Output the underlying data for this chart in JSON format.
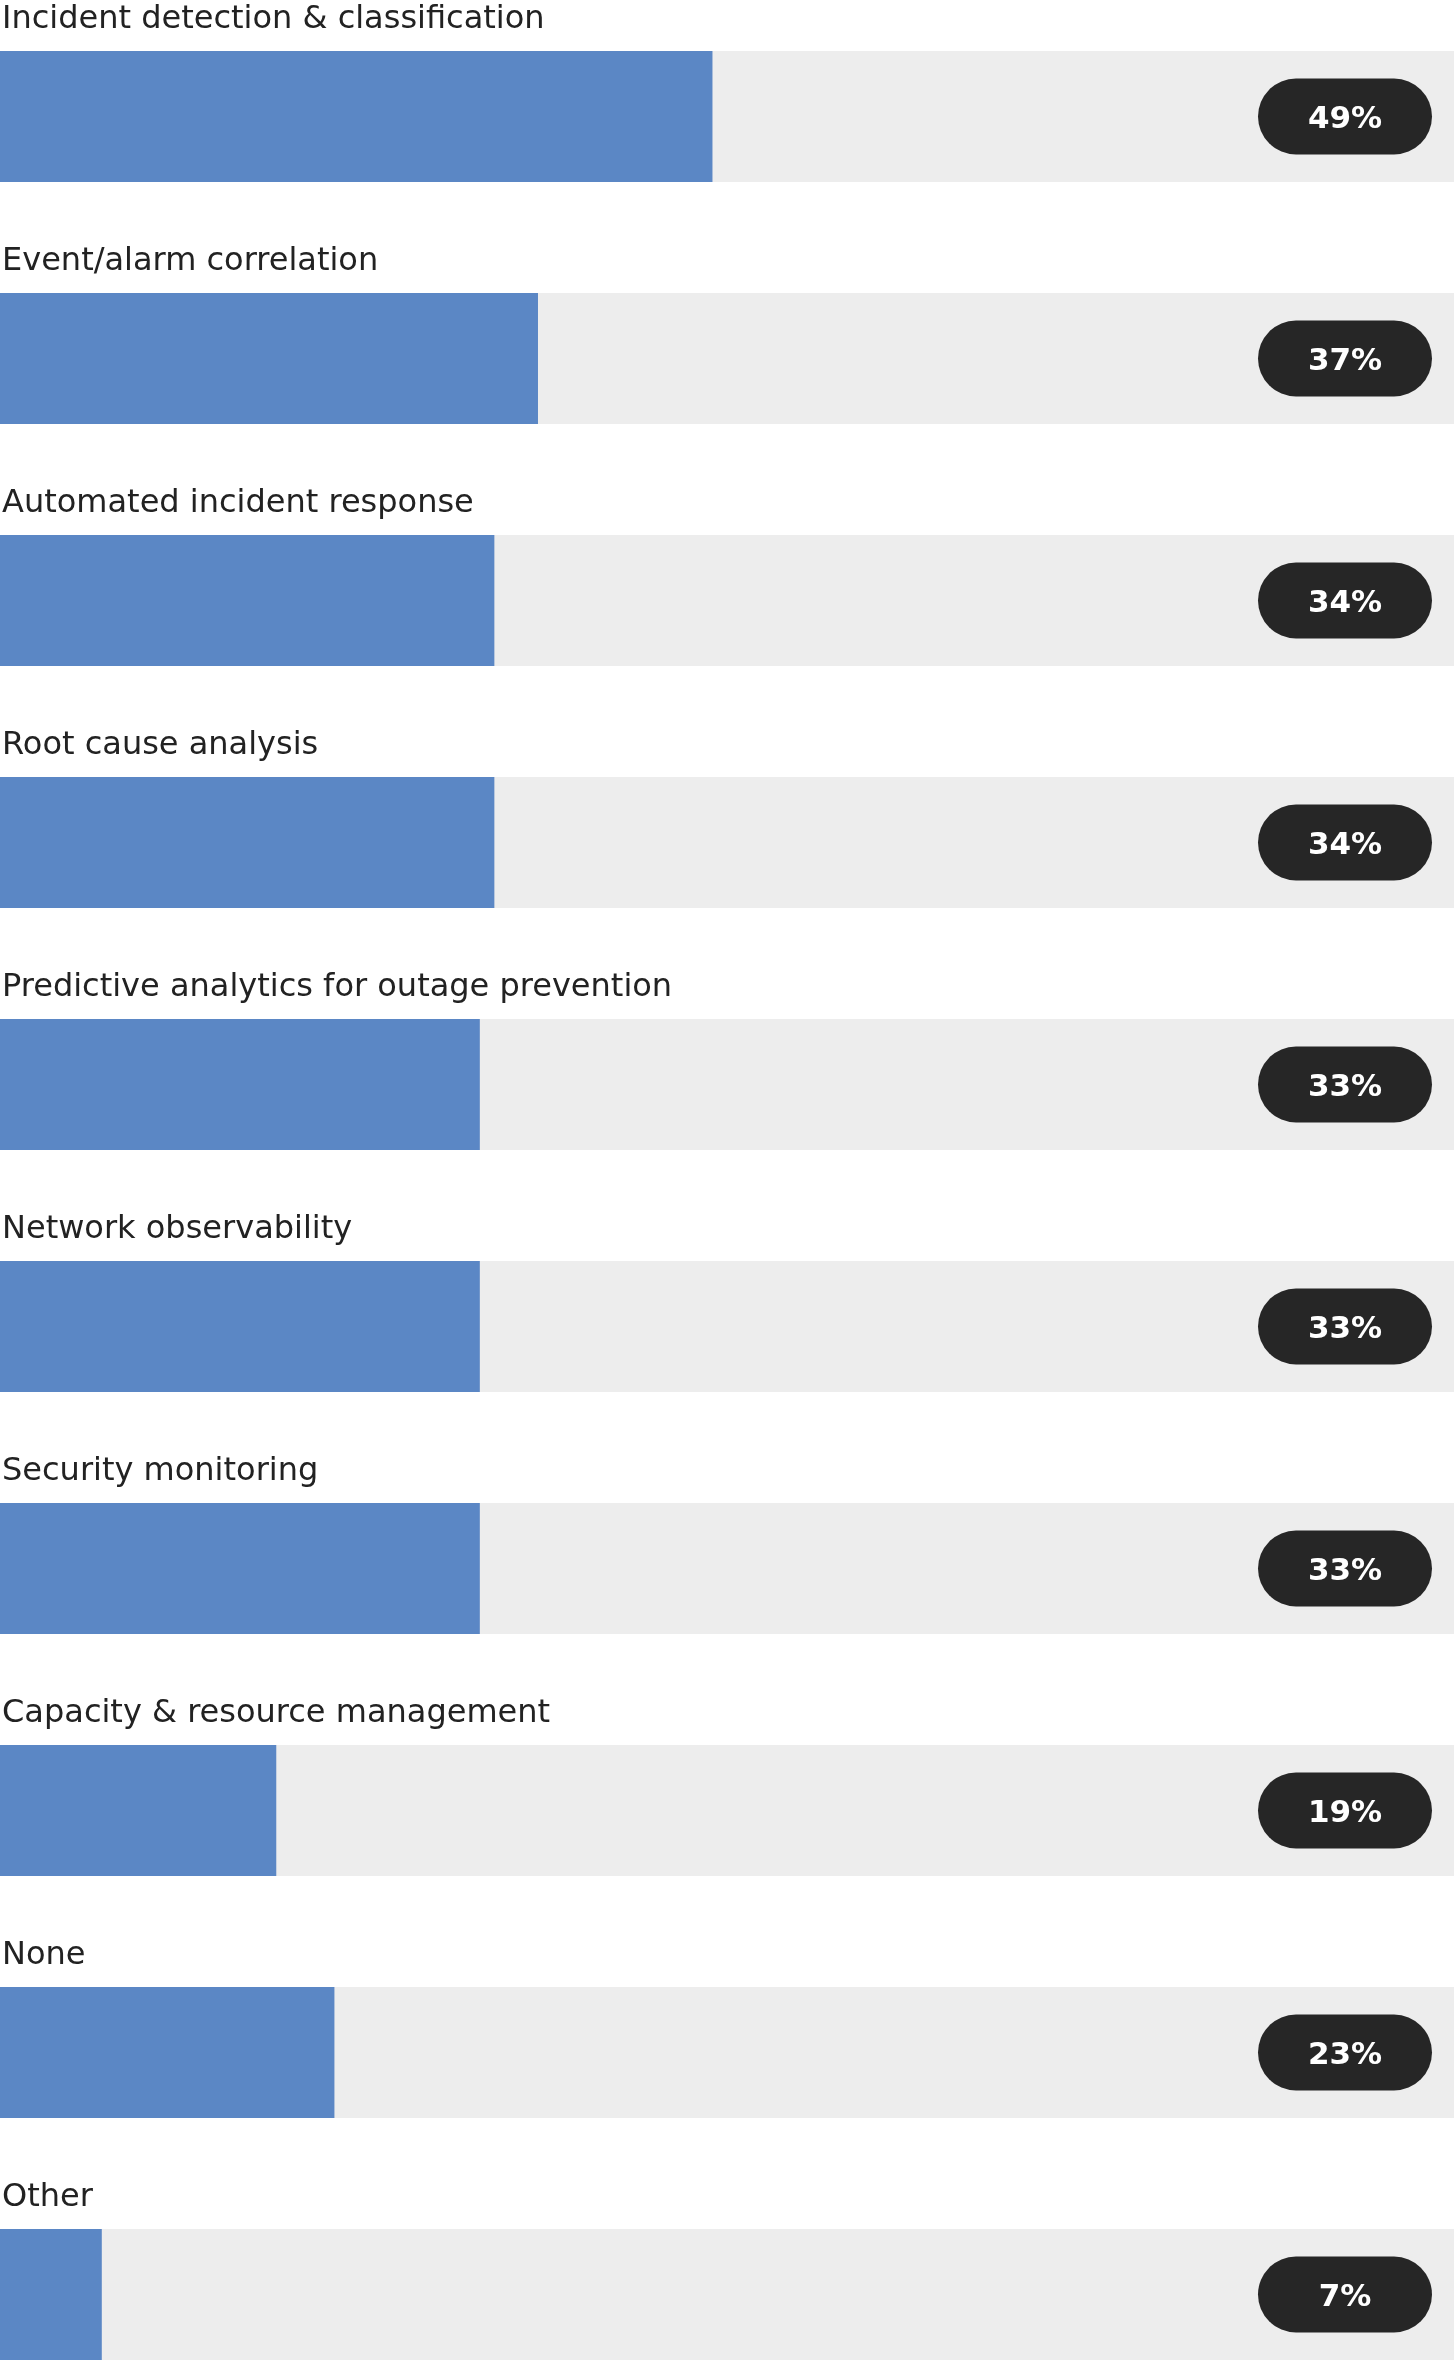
{
  "chart_data": {
    "type": "bar",
    "orientation": "horizontal",
    "categories": [
      "Incident detection & classification",
      "Event/alarm correlation",
      "Automated incident response",
      "Root cause analysis",
      "Predictive analytics for outage prevention",
      "Network observability",
      "Security monitoring",
      "Capacity & resource management",
      "None",
      "Other"
    ],
    "values": [
      49,
      37,
      34,
      34,
      33,
      33,
      33,
      19,
      23,
      7
    ],
    "color": "#5b87c5",
    "xlim": [
      0,
      100
    ],
    "value_labels": [
      "49%",
      "37%",
      "34%",
      "34%",
      "33%",
      "33%",
      "33%",
      "19%",
      "23%",
      "7%"
    ]
  }
}
